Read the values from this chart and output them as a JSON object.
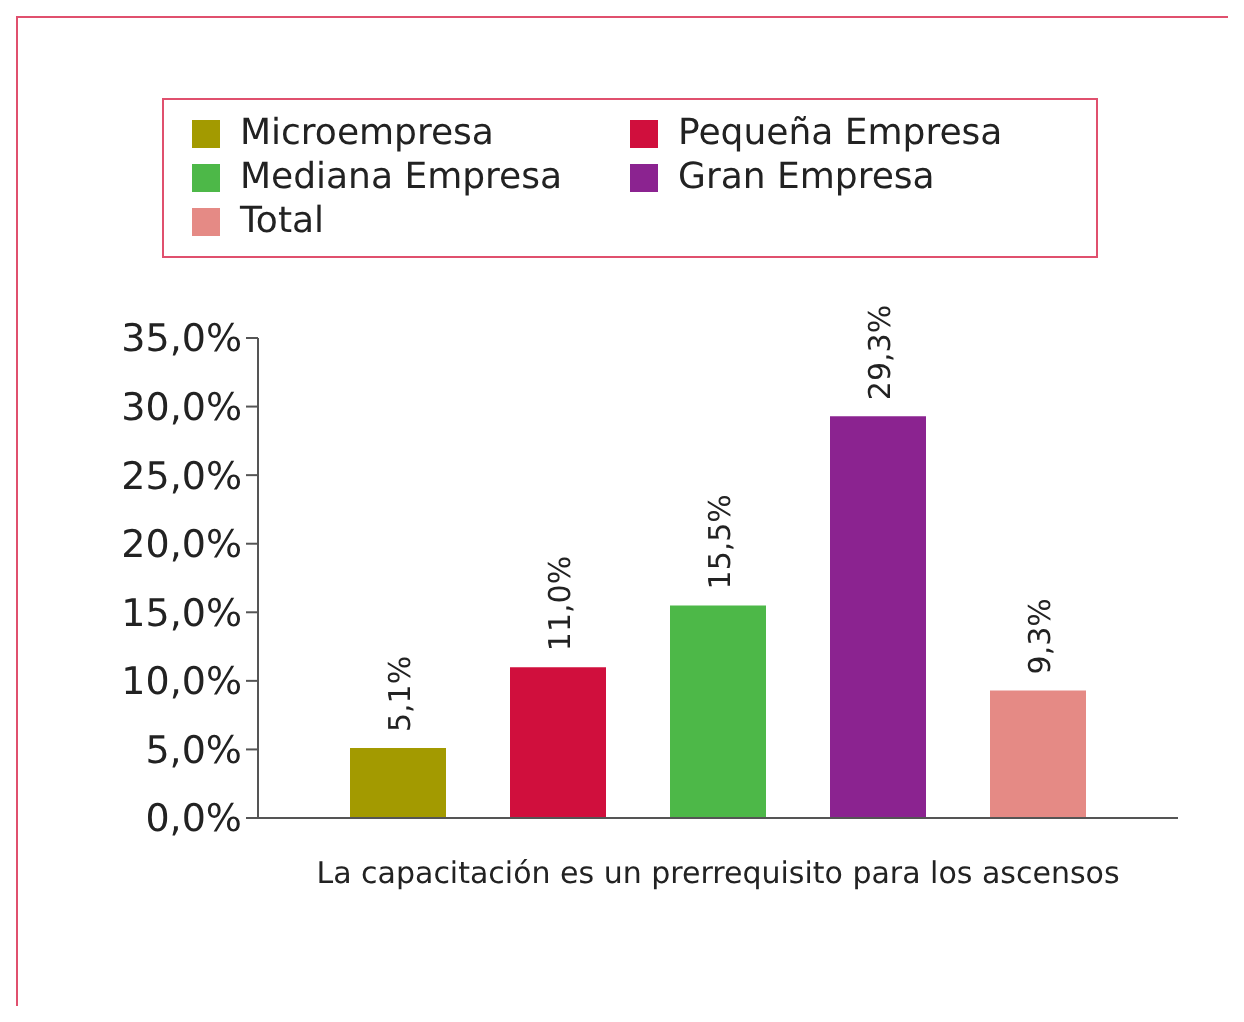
{
  "chart_data": {
    "type": "bar",
    "categories": [
      "La capacitación es un prerrequisito para los ascensos"
    ],
    "series": [
      {
        "name": "Microempresa",
        "color": "#a39a00",
        "values": [
          5.1
        ],
        "value_labels": [
          "5,1%"
        ]
      },
      {
        "name": "Pequeña Empresa",
        "color": "#d00f3d",
        "values": [
          11.0
        ],
        "value_labels": [
          "11,0%"
        ]
      },
      {
        "name": "Mediana Empresa",
        "color": "#4db848",
        "values": [
          15.5
        ],
        "value_labels": [
          "15,5%"
        ]
      },
      {
        "name": "Gran Empresa",
        "color": "#8b2390",
        "values": [
          29.3
        ],
        "value_labels": [
          "29,3%"
        ]
      },
      {
        "name": "Total",
        "color": "#e58a85",
        "values": [
          9.3
        ],
        "value_labels": [
          "9,3%"
        ]
      }
    ],
    "ylim": [
      0,
      35
    ],
    "yticks": [
      {
        "value": 0,
        "label": "0,0%"
      },
      {
        "value": 5,
        "label": "5,0%"
      },
      {
        "value": 10,
        "label": "10,0%"
      },
      {
        "value": 15,
        "label": "15,0%"
      },
      {
        "value": 20,
        "label": "20,0%"
      },
      {
        "value": 25,
        "label": "25,0%"
      },
      {
        "value": 30,
        "label": "30,0%"
      },
      {
        "value": 35,
        "label": "35,0%"
      }
    ],
    "grid": false,
    "legend": "top"
  }
}
